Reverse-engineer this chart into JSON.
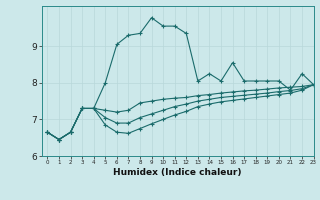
{
  "xlabel": "Humidex (Indice chaleur)",
  "bg_color": "#cce8ea",
  "line_color": "#1a6b6b",
  "grid_color": "#b8d8da",
  "xlim": [
    -0.5,
    23
  ],
  "ylim": [
    6,
    10.1
  ],
  "yticks": [
    6,
    7,
    8,
    9
  ],
  "xticks": [
    0,
    1,
    2,
    3,
    4,
    5,
    6,
    7,
    8,
    9,
    10,
    11,
    12,
    13,
    14,
    15,
    16,
    17,
    18,
    19,
    20,
    21,
    22,
    23
  ],
  "line1_x": [
    0,
    1,
    2,
    3,
    4,
    5,
    6,
    7,
    8,
    9,
    10,
    11,
    12,
    13,
    14,
    15,
    16,
    17,
    18,
    19,
    20,
    21,
    22,
    23
  ],
  "line1_y": [
    6.65,
    6.45,
    6.65,
    7.3,
    7.3,
    8.0,
    9.05,
    9.3,
    9.35,
    9.78,
    9.55,
    9.55,
    9.35,
    8.05,
    8.25,
    8.05,
    8.55,
    8.05,
    8.05,
    8.05,
    8.05,
    7.8,
    8.25,
    7.95
  ],
  "line2_x": [
    0,
    1,
    2,
    3,
    4,
    5,
    6,
    7,
    8,
    9,
    10,
    11,
    12,
    13,
    14,
    15,
    16,
    17,
    18,
    19,
    20,
    21,
    22,
    23
  ],
  "line2_y": [
    6.65,
    6.45,
    6.65,
    7.3,
    7.3,
    7.25,
    7.2,
    7.25,
    7.45,
    7.5,
    7.55,
    7.58,
    7.6,
    7.65,
    7.68,
    7.72,
    7.75,
    7.78,
    7.8,
    7.83,
    7.86,
    7.88,
    7.9,
    7.95
  ],
  "line3_x": [
    0,
    1,
    2,
    3,
    4,
    5,
    6,
    7,
    8,
    9,
    10,
    11,
    12,
    13,
    14,
    15,
    16,
    17,
    18,
    19,
    20,
    21,
    22,
    23
  ],
  "line3_y": [
    6.65,
    6.45,
    6.65,
    7.3,
    7.3,
    7.05,
    6.9,
    6.9,
    7.05,
    7.15,
    7.25,
    7.35,
    7.42,
    7.5,
    7.55,
    7.6,
    7.63,
    7.66,
    7.69,
    7.72,
    7.76,
    7.79,
    7.84,
    7.95
  ],
  "line4_x": [
    0,
    1,
    2,
    3,
    4,
    5,
    6,
    7,
    8,
    9,
    10,
    11,
    12,
    13,
    14,
    15,
    16,
    17,
    18,
    19,
    20,
    21,
    22,
    23
  ],
  "line4_y": [
    6.65,
    6.45,
    6.65,
    7.3,
    7.3,
    6.85,
    6.65,
    6.62,
    6.75,
    6.88,
    7.0,
    7.12,
    7.22,
    7.35,
    7.42,
    7.48,
    7.52,
    7.56,
    7.6,
    7.64,
    7.68,
    7.72,
    7.8,
    7.95
  ]
}
